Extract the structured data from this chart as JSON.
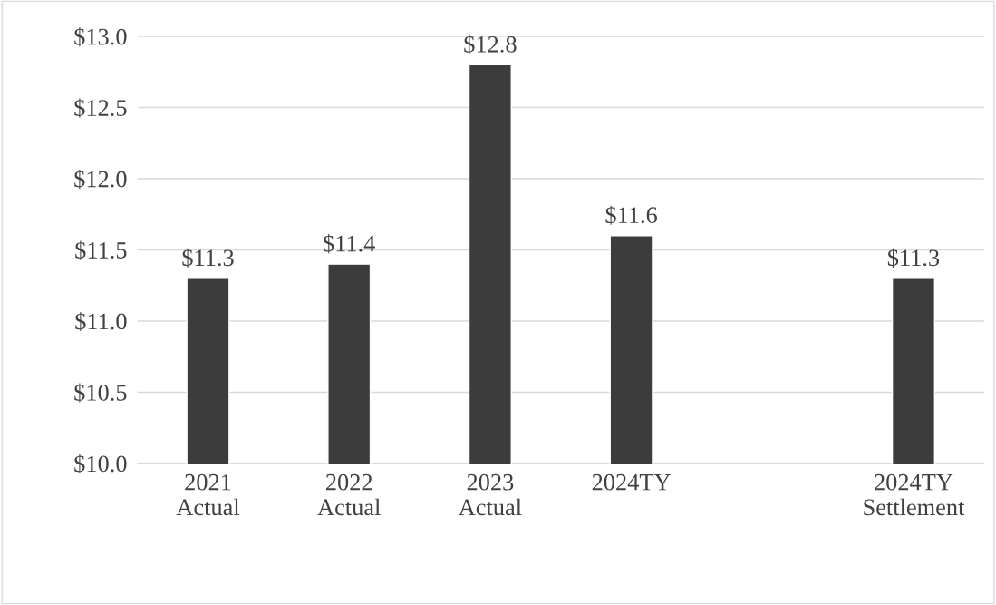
{
  "chart_data": {
    "type": "bar",
    "categories": [
      "2021\nActual",
      "2022\nActual",
      "2023\nActual",
      "2024TY",
      null,
      "2024TY\nSettlement"
    ],
    "values": [
      11.3,
      11.4,
      12.8,
      11.6,
      null,
      11.3
    ],
    "value_labels": [
      "$11.3",
      "$11.4",
      "$12.8",
      "$11.6",
      null,
      "$11.3"
    ],
    "color": "#3c3c3c",
    "ylim": [
      10.0,
      13.0
    ],
    "yticks": [
      {
        "value": 10.0,
        "label": "$10.0"
      },
      {
        "value": 10.5,
        "label": "$10.5"
      },
      {
        "value": 11.0,
        "label": "$11.0"
      },
      {
        "value": 11.5,
        "label": "$11.5"
      },
      {
        "value": 12.0,
        "label": "$12.0"
      },
      {
        "value": 12.5,
        "label": "$12.5"
      },
      {
        "value": 13.0,
        "label": "$13.0"
      }
    ],
    "grid": "y",
    "legend": false
  }
}
